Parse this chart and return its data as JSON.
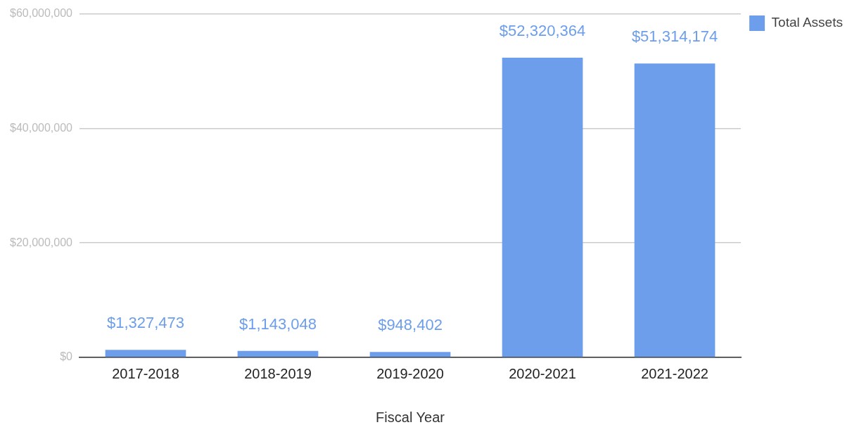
{
  "chart_data": {
    "type": "bar",
    "xlabel": "Fiscal Year",
    "categories": [
      "2017-2018",
      "2018-2019",
      "2019-2020",
      "2020-2021",
      "2021-2022"
    ],
    "series": [
      {
        "name": "Total Assets",
        "color": "#6d9eeb",
        "values": [
          1327473,
          1143048,
          948402,
          52320364,
          51314174
        ],
        "value_labels": [
          "$1,327,473",
          "$1,143,048",
          "$948,402",
          "$52,320,364",
          "$51,314,174"
        ]
      }
    ],
    "ylim": [
      0,
      60000000
    ],
    "yticks": [
      {
        "value": 0,
        "label": "$0"
      },
      {
        "value": 20000000,
        "label": "$20,000,000"
      },
      {
        "value": 40000000,
        "label": "$40,000,000"
      },
      {
        "value": 60000000,
        "label": "$60,000,000"
      }
    ],
    "grid": "y",
    "legend": "top right"
  }
}
